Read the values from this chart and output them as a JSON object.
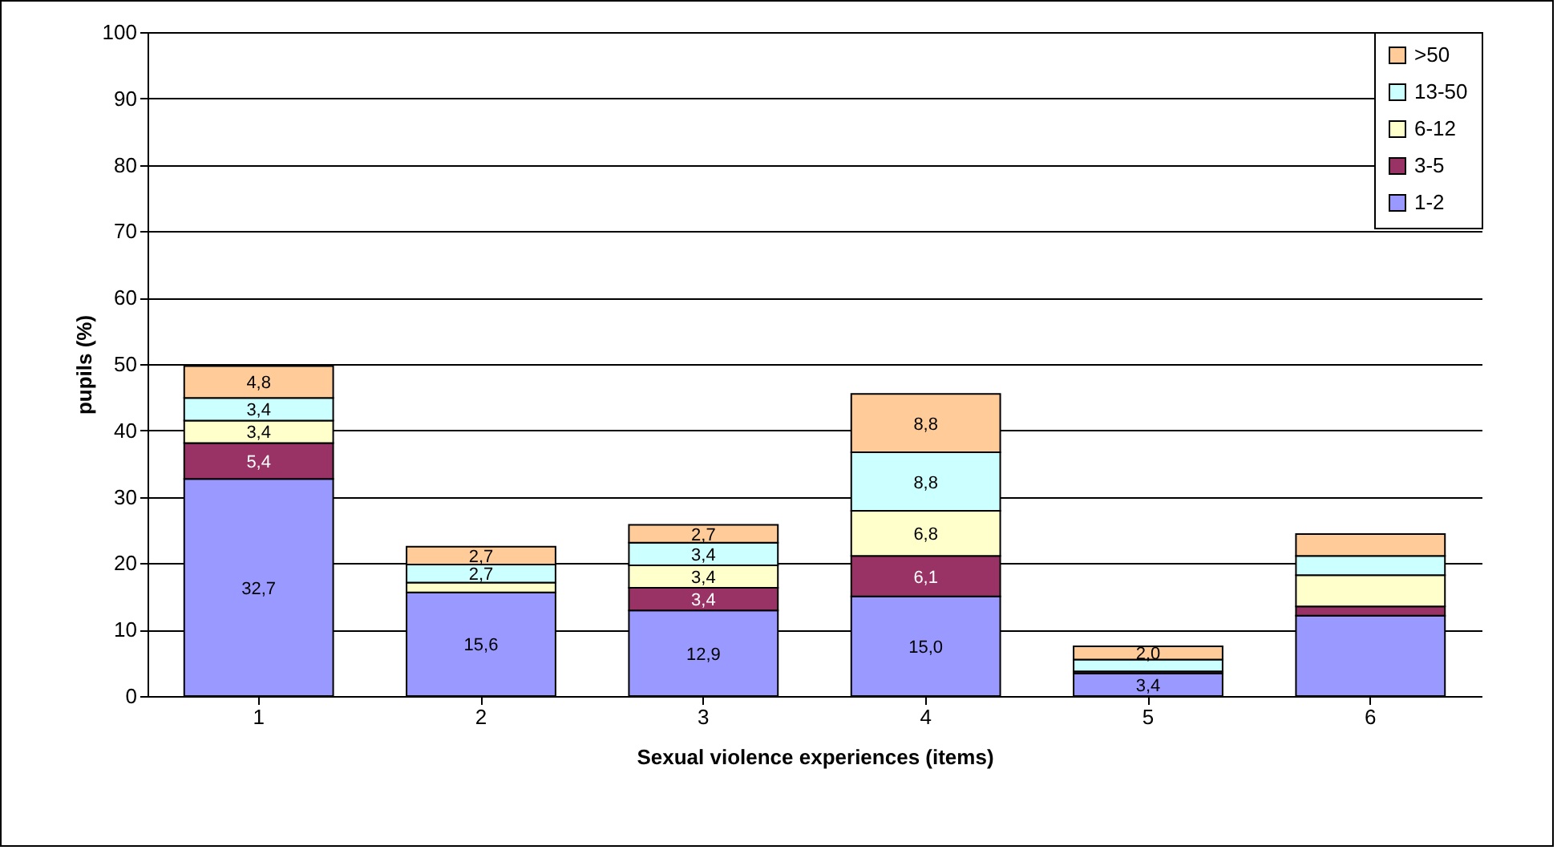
{
  "chart_data": {
    "type": "bar",
    "stacked": true,
    "xlabel": "Sexual violence experiences (items)",
    "ylabel": "pupils (%)",
    "categories": [
      "1",
      "2",
      "3",
      "4",
      "5",
      "6"
    ],
    "ylim": [
      0,
      100
    ],
    "yticks": [
      0,
      10,
      20,
      30,
      40,
      50,
      60,
      70,
      80,
      90,
      100
    ],
    "grid": "y",
    "legend": "top right",
    "series": [
      {
        "name": "1-2",
        "color": "#9999ff",
        "values": [
          32.7,
          15.6,
          12.9,
          15.0,
          3.4,
          12.1
        ],
        "value_labels": [
          "32,7",
          "15,6",
          "12,9",
          "15,0",
          "3,4",
          null
        ]
      },
      {
        "name": "3-5",
        "color": "#993366",
        "values": [
          5.4,
          0,
          3.4,
          6.1,
          0.3,
          1.4
        ],
        "value_labels": [
          "5,4",
          null,
          "3,4",
          "6,1",
          null,
          null
        ]
      },
      {
        "name": "6-12",
        "color": "#ffffcc",
        "values": [
          3.4,
          1.5,
          3.4,
          6.8,
          0,
          4.7
        ],
        "value_labels": [
          "3,4",
          null,
          "3,4",
          "6,8",
          null,
          null
        ]
      },
      {
        "name": "13-50",
        "color": "#ccffff",
        "values": [
          3.4,
          2.7,
          3.4,
          8.8,
          1.8,
          2.9
        ],
        "value_labels": [
          "3,4",
          "2,7",
          "3,4",
          "8,8",
          null,
          null
        ]
      },
      {
        "name": ">50",
        "color": "#ffcc99",
        "values": [
          4.8,
          2.7,
          2.7,
          8.8,
          2.0,
          3.3
        ],
        "value_labels": [
          "4,8",
          "2,7",
          "2,7",
          "8,8",
          "2,0",
          null
        ]
      }
    ]
  }
}
